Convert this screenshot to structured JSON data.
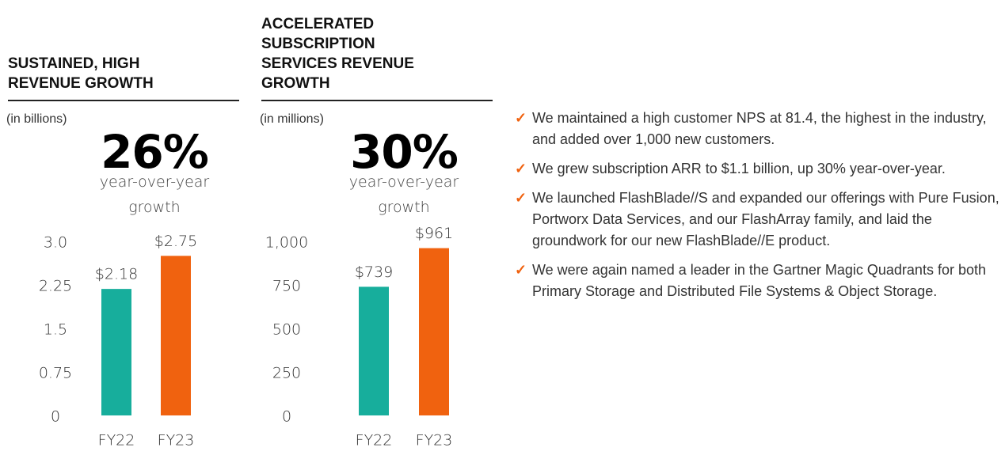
{
  "chart_data": [
    {
      "type": "bar",
      "title": "SUSTAINED, HIGH REVENUE GROWTH",
      "subtitle": "(in billions)",
      "headline": "26%",
      "headline_note": "year-over-year growth",
      "categories": [
        "FY22",
        "FY23"
      ],
      "values": [
        2.18,
        2.75
      ],
      "value_labels": [
        "$2.18",
        "$2.75"
      ],
      "colors": [
        "#17ae9c",
        "#f0620f"
      ],
      "ylim": [
        0,
        3
      ],
      "yticks": [
        0,
        0.75,
        1.5,
        2.25,
        {
          "value": 3,
          "label": "3.0"
        }
      ]
    },
    {
      "type": "bar",
      "title": "ACCELERATED SUBSCRIPTION SERVICES REVENUE GROWTH",
      "subtitle": "(in millions)",
      "headline": "30%",
      "headline_note": "year-over-year growth",
      "categories": [
        "FY22",
        "FY23"
      ],
      "values": [
        739,
        961
      ],
      "value_labels": [
        "$739",
        "$961"
      ],
      "colors": [
        "#17ae9c",
        "#f0620f"
      ],
      "ylim": [
        0,
        1000
      ],
      "yticks": [
        0,
        250,
        500,
        750,
        {
          "value": 1000,
          "label": "1,000"
        }
      ]
    }
  ],
  "bullets": [
    "We maintained a high customer NPS at 81.4, the highest in the industry, and added over 1,000 new customers.",
    "We grew subscription ARR to $1.1 billion, up 30% year-over-year.",
    "We launched FlashBlade//S and expanded our offerings with Pure Fusion, Portworx Data Services, and our FlashArray family, and laid the groundwork for our new FlashBlade//E product.",
    "We were again named a leader in the Gartner Magic Quadrants for both Primary Storage and Distributed File Systems & Object Storage."
  ]
}
